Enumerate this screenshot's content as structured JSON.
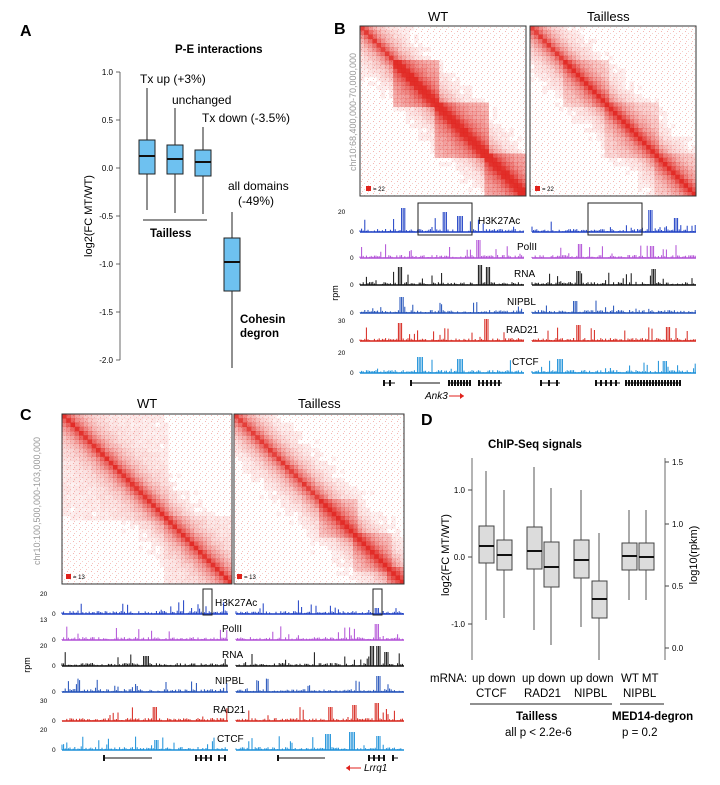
{
  "colors": {
    "box_fill_a": "#6ec1f0",
    "box_stroke_a": "#1a1a1a",
    "hic_red": "#e0221c",
    "h3k27ac": "#1d3fc4",
    "polII": "#b14fd6",
    "rna": "#111111",
    "nipbl": "#1f4fb8",
    "rad21": "#d6251c",
    "ctcf": "#1a8fd8",
    "box_fill_d": "#dcdcdc"
  },
  "panelA": {
    "letter": "A",
    "title": "P-E interactions",
    "ylabel": "log2(FC MT/WT)",
    "yticks": [
      "1.0",
      "0.5",
      "0.0",
      "-0.5",
      "-1.0",
      "-1.5",
      "-2.0"
    ],
    "labels": {
      "tx_up": "Tx up (+3%)",
      "unchanged": "unchanged",
      "tx_down": "Tx down (-3.5%)",
      "all_domains_1": "all domains",
      "all_domains_2": "(-49%)",
      "tailless": "Tailless",
      "cohesin_1": "Cohesin",
      "cohesin_2": "degron"
    }
  },
  "panelB": {
    "letter": "B",
    "wt": "WT",
    "tailless": "Tailless",
    "coord": "chr10:68,400,000-70,000,000",
    "scale_wt": "= 22",
    "scale_tl": "= 22",
    "tracks": [
      {
        "name": "H3K27Ac",
        "max": "20",
        "min": "0"
      },
      {
        "name": "PolII",
        "max": "",
        "min": "0"
      },
      {
        "name": "RNA",
        "max": "",
        "min": "0"
      },
      {
        "name": "NIPBL",
        "max": "",
        "min": "0"
      },
      {
        "name": "RAD21",
        "max": "30",
        "min": "0"
      },
      {
        "name": "CTCF",
        "max": "20",
        "min": "0"
      }
    ],
    "rpm": "rpm",
    "gene": "Ank3"
  },
  "panelC": {
    "letter": "C",
    "wt": "WT",
    "tailless": "Tailless",
    "coord": "chr10:100,500,000-103,000,000",
    "scale_wt": "= 13",
    "scale_tl": "= 13",
    "tracks": [
      {
        "name": "H3K27Ac",
        "max": "20",
        "min": "0"
      },
      {
        "name": "PolII",
        "max": "13",
        "min": "0"
      },
      {
        "name": "RNA",
        "max": "20",
        "min": "0"
      },
      {
        "name": "NIPBL",
        "max": "",
        "min": "0"
      },
      {
        "name": "RAD21",
        "max": "30",
        "min": "0"
      },
      {
        "name": "CTCF",
        "max": "20",
        "min": "0"
      }
    ],
    "rpm": "rpm",
    "gene": "Lrrq1"
  },
  "panelD": {
    "letter": "D",
    "title": "ChIP-Seq signals",
    "ylabel": "log2(FC MT/WT)",
    "y2label": "log10(rpkm)",
    "yticks": [
      "1.0",
      "0.0",
      "-1.0"
    ],
    "y2ticks": [
      "1.5",
      "1.0",
      "0.5",
      "0.0"
    ],
    "mrna": "mRNA:",
    "pairs": [
      "up down",
      "up down",
      "up down"
    ],
    "pair_labels": [
      "CTCF",
      "RAD21",
      "NIPBL"
    ],
    "wtmt": "WT   MT",
    "nipbl2": "NIPBL",
    "tailless": "Tailless",
    "tailless_p": "all p < 2.2e-6",
    "med14": "MED14-degron",
    "med14_p": "p = 0.2"
  }
}
